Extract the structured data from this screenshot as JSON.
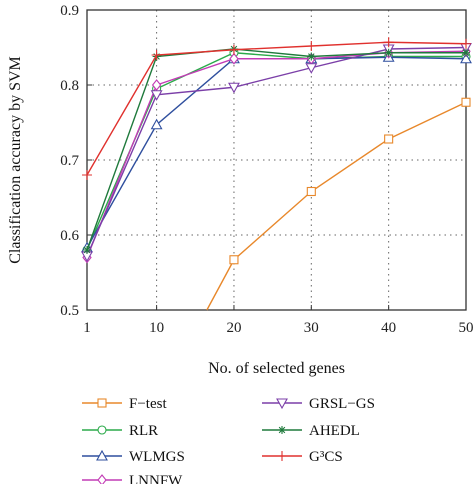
{
  "chart_data": {
    "type": "line",
    "xlabel": "No. of selected genes",
    "ylabel": "Classification accuracy by SVM",
    "x": [
      1,
      10,
      20,
      30,
      40,
      50
    ],
    "x_tick_labels": [
      "1",
      "10",
      "20",
      "30",
      "40",
      "50"
    ],
    "xlim": [
      1,
      50
    ],
    "ylim": [
      0.5,
      0.9
    ],
    "y_ticks": [
      0.5,
      0.6,
      0.7,
      0.8,
      0.9
    ],
    "y_tick_labels": [
      "0.5",
      "0.6",
      "0.7",
      "0.8",
      "0.9"
    ],
    "grid": true,
    "legend_position": "below",
    "series": [
      {
        "name": "F−test",
        "color": "#E8882B",
        "marker": "square",
        "x": [
          16.5,
          20,
          30,
          40,
          50
        ],
        "values": [
          0.5,
          0.567,
          0.658,
          0.728,
          0.777
        ]
      },
      {
        "name": "RLR",
        "color": "#2BAA4A",
        "marker": "circle",
        "x": [
          1,
          10,
          20,
          30,
          40,
          50
        ],
        "values": [
          0.58,
          0.795,
          0.843,
          0.835,
          0.838,
          0.838
        ]
      },
      {
        "name": "WLMGS",
        "color": "#2F4F9E",
        "marker": "triangle-up",
        "x": [
          1,
          10,
          20,
          30,
          40,
          50
        ],
        "values": [
          0.583,
          0.747,
          0.835,
          0.835,
          0.837,
          0.835
        ]
      },
      {
        "name": "LNNFW",
        "color": "#C23BB5",
        "marker": "diamond",
        "x": [
          1,
          10,
          20,
          30,
          40,
          50
        ],
        "values": [
          0.57,
          0.8,
          0.835,
          0.835,
          0.843,
          0.845
        ]
      },
      {
        "name": "GRSL−GS",
        "color": "#7B3FA8",
        "marker": "triangle-down",
        "x": [
          1,
          10,
          20,
          30,
          40,
          50
        ],
        "values": [
          0.572,
          0.787,
          0.797,
          0.823,
          0.848,
          0.85
        ]
      },
      {
        "name": "AHEDL",
        "color": "#1F7A3C",
        "marker": "star",
        "x": [
          1,
          10,
          20,
          30,
          40,
          50
        ],
        "values": [
          0.58,
          0.838,
          0.848,
          0.838,
          0.843,
          0.843
        ]
      },
      {
        "name": "G³CS",
        "color": "#E0312E",
        "marker": "plus",
        "x": [
          1,
          10,
          20,
          30,
          40,
          50
        ],
        "values": [
          0.68,
          0.84,
          0.847,
          0.852,
          0.857,
          0.855
        ]
      }
    ]
  }
}
